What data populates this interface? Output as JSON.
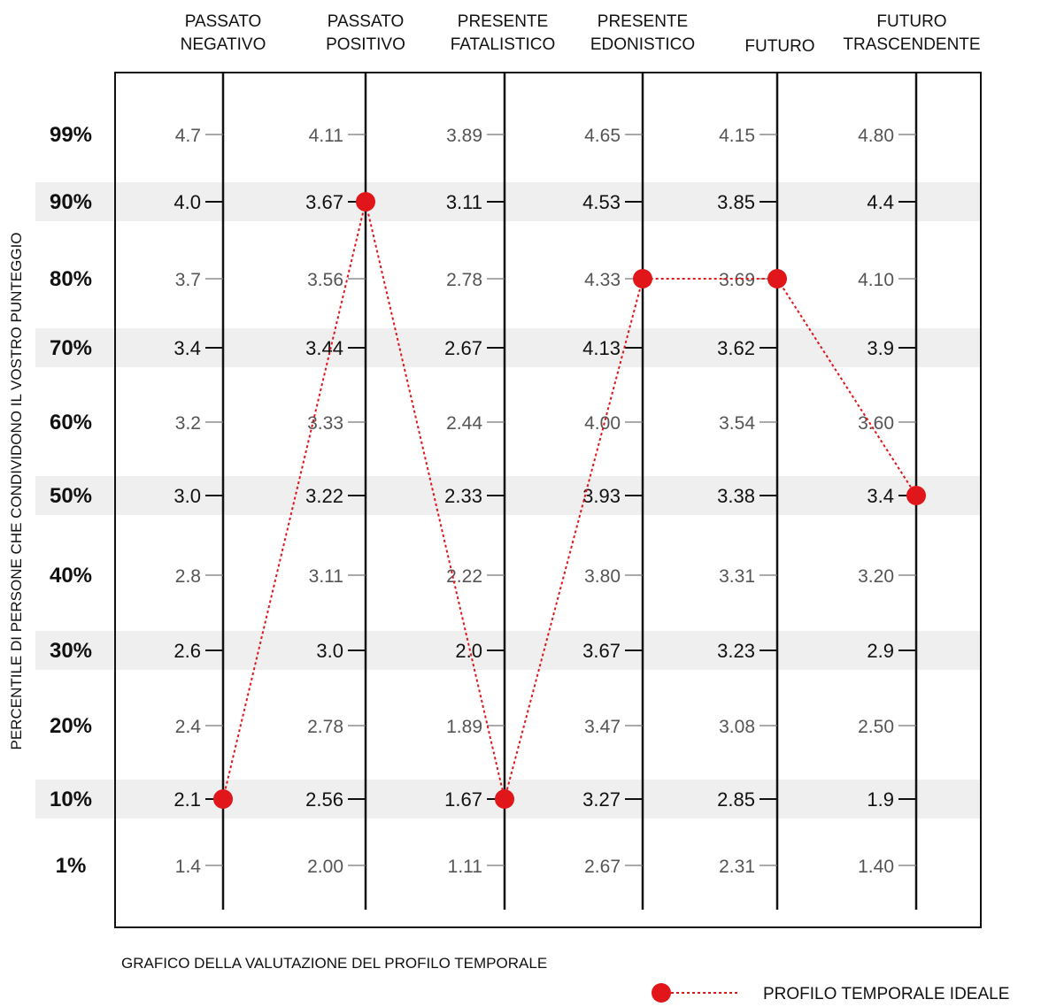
{
  "chart_data": {
    "type": "line",
    "title": "",
    "caption": "GRAFICO DELLA VALUTAZIONE DEL PROFILO TEMPORALE",
    "ylabel": "PERCENTILE DI PERSONE CHE CONDIVIDONO IL VOSTRO PUNTEGGIO",
    "percentiles": [
      "99%",
      "90%",
      "80%",
      "70%",
      "60%",
      "50%",
      "40%",
      "30%",
      "20%",
      "10%",
      "1%"
    ],
    "shaded_rows": [
      "90%",
      "70%",
      "50%",
      "30%",
      "10%"
    ],
    "bold_rows": [
      "90%",
      "70%",
      "50%",
      "30%",
      "10%"
    ],
    "columns": [
      {
        "label": [
          "PASSATO",
          "NEGATIVO"
        ],
        "values": [
          "4.7",
          "4.0",
          "3.7",
          "3.4",
          "3.2",
          "3.0",
          "2.8",
          "2.6",
          "2.4",
          "2.1",
          "1.4"
        ]
      },
      {
        "label": [
          "PASSATO",
          "POSITIVO"
        ],
        "values": [
          "4.11",
          "3.67",
          "3.56",
          "3.44",
          "3.33",
          "3.22",
          "3.11",
          "3.0",
          "2.78",
          "2.56",
          "2.00"
        ]
      },
      {
        "label": [
          "PRESENTE",
          "FATALISTICO"
        ],
        "values": [
          "3.89",
          "3.11",
          "2.78",
          "2.67",
          "2.44",
          "2.33",
          "2.22",
          "2.0",
          "1.89",
          "1.67",
          "1.11"
        ]
      },
      {
        "label": [
          "PRESENTE",
          "EDONISTICO"
        ],
        "values": [
          "4.65",
          "4.53",
          "4.33",
          "4.13",
          "4.00",
          "3.93",
          "3.80",
          "3.67",
          "3.47",
          "3.27",
          "2.67"
        ]
      },
      {
        "label": [
          "FUTURO"
        ],
        "values": [
          "4.15",
          "3.85",
          "3.69",
          "3.62",
          "3.54",
          "3.38",
          "3.31",
          "3.23",
          "3.08",
          "2.85",
          "2.31"
        ]
      },
      {
        "label": [
          "FUTURO",
          "TRASCENDENTE"
        ],
        "values": [
          "4.80",
          "4.4",
          "4.10",
          "3.9",
          "3.60",
          "3.4",
          "3.20",
          "2.9",
          "2.50",
          "1.9",
          "1.40"
        ]
      }
    ],
    "series": [
      {
        "name": "PROFILO TEMPORALE IDEALE",
        "color": "#e0161b",
        "points": [
          {
            "column": "PASSATO NEGATIVO",
            "percentile": "10%"
          },
          {
            "column": "PASSATO POSITIVO",
            "percentile": "90%"
          },
          {
            "column": "PRESENTE FATALISTICO",
            "percentile": "10%"
          },
          {
            "column": "PRESENTE EDONISTICO",
            "percentile": "80%"
          },
          {
            "column": "FUTURO",
            "percentile": "80%"
          },
          {
            "column": "FUTURO TRASCENDENTE",
            "percentile": "50%"
          }
        ]
      }
    ],
    "legend_position": "bottom-right",
    "row_shading_color": "#efefef"
  }
}
